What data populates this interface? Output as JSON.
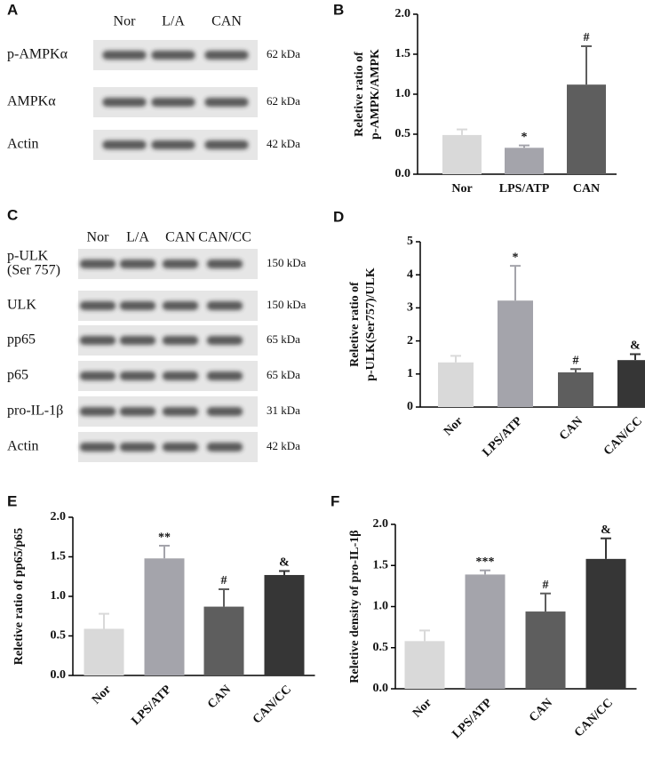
{
  "blots": [
    {
      "panel": "A",
      "lanes": [
        "Nor",
        "L/A",
        "CAN"
      ],
      "rows": [
        {
          "name": "p-AMPKα",
          "size": "62 kDa"
        },
        {
          "name": "AMPKα",
          "size": "62 kDa"
        },
        {
          "name": "Actin",
          "size": "42 kDa"
        }
      ]
    },
    {
      "panel": "C",
      "lanes": [
        "Nor",
        "L/A",
        "CAN",
        "CAN/CC"
      ],
      "rows": [
        {
          "name": [
            "p-ULK",
            "(Ser 757)"
          ],
          "size": "150 kDa"
        },
        {
          "name": "ULK",
          "size": "150 kDa"
        },
        {
          "name": "pp65",
          "size": "65 kDa"
        },
        {
          "name": "p65",
          "size": "65 kDa"
        },
        {
          "name": "pro-IL-1β",
          "size": "31 kDa"
        },
        {
          "name": "Actin",
          "size": "42 kDa"
        }
      ]
    }
  ],
  "chart_data": [
    {
      "panel": "B",
      "type": "bar",
      "ylabel": [
        "Reletive ratio of",
        "p-AMPK/AMPK"
      ],
      "categories": [
        "Nor",
        "LPS/ATP",
        "CAN"
      ],
      "values": [
        0.49,
        0.33,
        1.12
      ],
      "errors": [
        0.07,
        0.03,
        0.48
      ],
      "annotations": [
        null,
        "*",
        "#"
      ],
      "colors": [
        "#d9d9d9",
        "#a4a4ab",
        "#5e5e5e"
      ],
      "ylim": [
        0,
        2
      ],
      "yticks": [
        {
          "value": 0,
          "label": "0.0"
        },
        0.5,
        {
          "value": 1,
          "label": "1.0"
        },
        1.5,
        {
          "value": 2,
          "label": "2.0"
        }
      ]
    },
    {
      "panel": "D",
      "type": "bar",
      "ylabel": [
        "Reletive ratio of",
        "p-ULK(Ser757)/ULK"
      ],
      "categories": [
        "Nor",
        "LPS/ATP",
        "CAN",
        "CAN/CC"
      ],
      "values": [
        1.35,
        3.22,
        1.05,
        1.42
      ],
      "errors": [
        0.2,
        1.05,
        0.1,
        0.18
      ],
      "annotations": [
        null,
        "*",
        "#",
        "&"
      ],
      "colors": [
        "#d9d9d9",
        "#a4a4ab",
        "#5e5e5e",
        "#363636"
      ],
      "ylim": [
        0,
        5
      ],
      "yticks": [
        0,
        1,
        2,
        3,
        4,
        5
      ]
    },
    {
      "panel": "E",
      "type": "bar",
      "ylabel": [
        "Reletive ratio of pp65/p65"
      ],
      "categories": [
        "Nor",
        "LPS/ATP",
        "CAN",
        "CAN/CC"
      ],
      "values": [
        0.59,
        1.48,
        0.87,
        1.27
      ],
      "errors": [
        0.19,
        0.16,
        0.22,
        0.05
      ],
      "annotations": [
        null,
        "**",
        "#",
        "&"
      ],
      "colors": [
        "#d9d9d9",
        "#a4a4ab",
        "#5e5e5e",
        "#363636"
      ],
      "ylim": [
        0,
        2
      ],
      "yticks": [
        {
          "value": 0,
          "label": "0.0"
        },
        0.5,
        {
          "value": 1,
          "label": "1.0"
        },
        1.5,
        {
          "value": 2,
          "label": "2.0"
        }
      ]
    },
    {
      "panel": "F",
      "type": "bar",
      "ylabel": [
        "Reletive density of pro-IL-1β"
      ],
      "categories": [
        "Nor",
        "LPS/ATP",
        "CAN",
        "CAN/CC"
      ],
      "values": [
        0.58,
        1.39,
        0.94,
        1.58
      ],
      "errors": [
        0.13,
        0.05,
        0.22,
        0.25
      ],
      "annotations": [
        null,
        "***",
        "#",
        "&"
      ],
      "colors": [
        "#d9d9d9",
        "#a4a4ab",
        "#5e5e5e",
        "#363636"
      ],
      "ylim": [
        0,
        2
      ],
      "yticks": [
        {
          "value": 0,
          "label": "0.0"
        },
        0.5,
        {
          "value": 1,
          "label": "1.0"
        },
        1.5,
        {
          "value": 2,
          "label": "2.0"
        }
      ]
    }
  ]
}
